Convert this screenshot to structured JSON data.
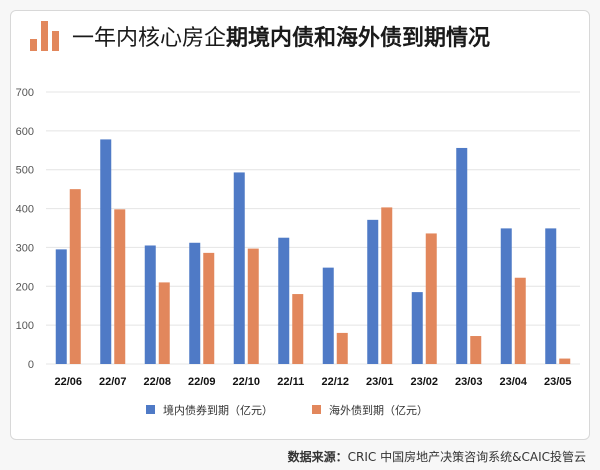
{
  "title": {
    "normal": "一年内核心房企",
    "bold": "期境内债和海外债到期情况"
  },
  "source": {
    "label": "数据来源：",
    "text": "CRIC 中国房地产决策咨询系统&CAIC投管云"
  },
  "colors": {
    "series_a": "#4f7ac6",
    "series_b": "#e2875c",
    "icon": "#e2875c"
  },
  "chart_data": {
    "type": "bar",
    "categories": [
      "22/06",
      "22/07",
      "22/08",
      "22/09",
      "22/10",
      "22/11",
      "22/12",
      "23/01",
      "23/02",
      "23/03",
      "23/04",
      "23/05"
    ],
    "series": [
      {
        "name": "境内债券到期（亿元）",
        "values": [
          295,
          578,
          305,
          312,
          493,
          325,
          248,
          371,
          185,
          556,
          349,
          349
        ]
      },
      {
        "name": "海外债到期（亿元）",
        "values": [
          450,
          398,
          210,
          286,
          297,
          180,
          80,
          403,
          336,
          72,
          222,
          14
        ]
      }
    ],
    "yticks": [
      0,
      100,
      200,
      300,
      400,
      500,
      600,
      700
    ],
    "ylim": [
      0,
      700
    ],
    "grid": true,
    "legend_position": "bottom"
  }
}
